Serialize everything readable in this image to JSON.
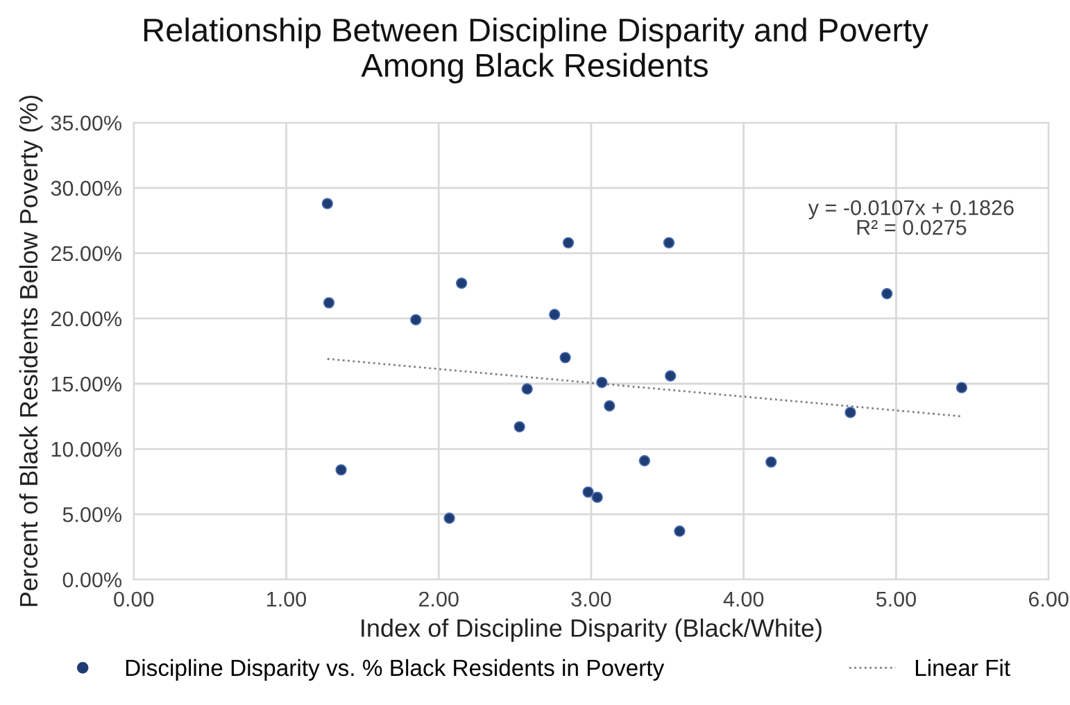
{
  "chart_data": {
    "type": "scatter",
    "title": "Relationship Between Discipline Disparity and Poverty\nAmong Black Residents",
    "xlabel": "Index of Discipline Disparity (Black/White)",
    "ylabel": "Percent of Black Residents Below Poverty (%)",
    "series": [
      {
        "name": "Discipline Disparity vs. % Black Residents in Poverty",
        "color": "#1f3d73",
        "marker": "circle",
        "x": [
          1.27,
          1.28,
          1.36,
          1.85,
          2.07,
          2.15,
          2.53,
          2.58,
          2.76,
          2.83,
          2.85,
          2.98,
          3.04,
          3.07,
          3.12,
          3.35,
          3.51,
          3.52,
          3.58,
          4.18,
          4.7,
          4.94,
          5.43
        ],
        "values": [
          0.288,
          0.212,
          0.084,
          0.199,
          0.047,
          0.227,
          0.117,
          0.146,
          0.203,
          0.17,
          0.258,
          0.067,
          0.063,
          0.151,
          0.133,
          0.091,
          0.258,
          0.156,
          0.037,
          0.09,
          0.128,
          0.219,
          0.147
        ]
      },
      {
        "name": "Linear Fit",
        "type": "line",
        "color": "#7f7f7f",
        "line_style": "dotted",
        "x": [
          1.27,
          5.43
        ],
        "values": [
          0.169,
          0.125
        ]
      }
    ],
    "annotations": [
      "y = -0.0107x + 0.1826\nR² = 0.0275"
    ],
    "xlim": [
      0,
      6
    ],
    "xticks": [
      {
        "value": 0,
        "label": "0.00"
      },
      {
        "value": 1,
        "label": "1.00"
      },
      {
        "value": 2,
        "label": "2.00"
      },
      {
        "value": 3,
        "label": "3.00"
      },
      {
        "value": 4,
        "label": "4.00"
      },
      {
        "value": 5,
        "label": "5.00"
      },
      {
        "value": 6,
        "label": "6.00"
      }
    ],
    "ylim": [
      0,
      0.35
    ],
    "yticks": [
      {
        "value": 0,
        "label": "0.00%"
      },
      {
        "value": 0.05,
        "label": "5.00%"
      },
      {
        "value": 0.1,
        "label": "10.00%"
      },
      {
        "value": 0.15,
        "label": "15.00%"
      },
      {
        "value": 0.2,
        "label": "20.00%"
      },
      {
        "value": 0.25,
        "label": "25.00%"
      },
      {
        "value": 0.3,
        "label": "30.00%"
      },
      {
        "value": 0.35,
        "label": "35.00%"
      }
    ],
    "grid": true,
    "legend": "bottom"
  }
}
